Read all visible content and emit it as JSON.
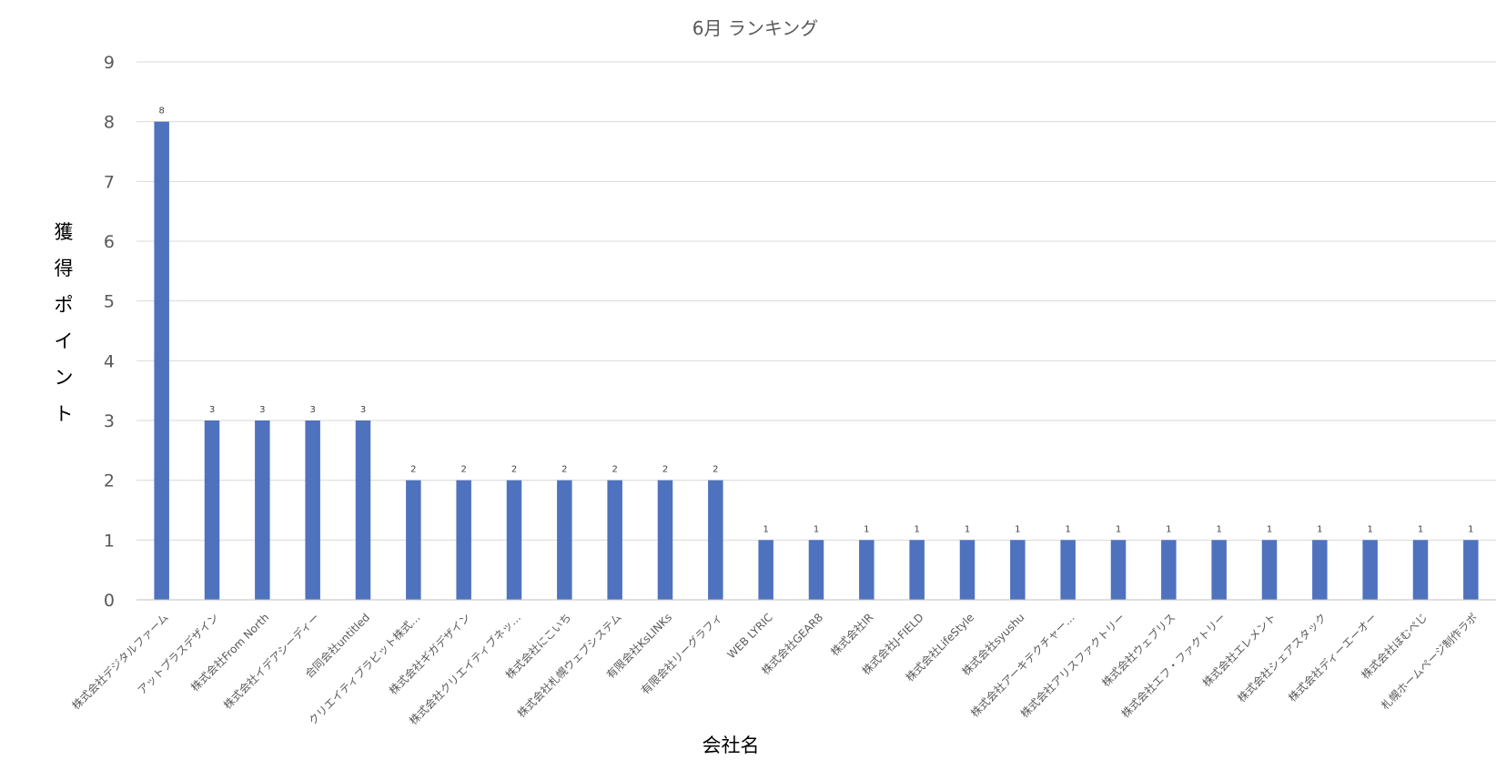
{
  "chart_data": {
    "type": "bar",
    "title": "6月 ランキング",
    "xlabel": "会社名",
    "ylabel": "獲得ポイント",
    "ylim": [
      0,
      9
    ],
    "yticks": [
      0,
      1,
      2,
      3,
      4,
      5,
      6,
      7,
      8,
      9
    ],
    "grid": true,
    "legend": "none",
    "colors": {
      "bar": "#4f72be",
      "grid": "#d9d9d9",
      "text": "#595959"
    },
    "categories": [
      "株式会社デジタルファーム",
      "アットプラスデザイン",
      "株式会社From North",
      "株式会社イデアシーディー",
      "合同会社untitled",
      "クリエイティブラビット株式…",
      "株式会社ギガデザイン",
      "株式会社クリエイティブネッ…",
      "株式会社にこいち",
      "株式会社札幌ウェブシステム",
      "有限会社KsLINKs",
      "有限会社リーグラフィ",
      "WEB LYRIC",
      "株式会社GEAR8",
      "株式会社IR",
      "株式会社J-FIELD",
      "株式会社LifeStyle",
      "株式会社syushu",
      "株式会社アーキテクチャー…",
      "株式会社アリスファクトリー",
      "株式会社ウェブリス",
      "株式会社エフ・ファクトリー",
      "株式会社エレメント",
      "株式会社シェアスタック",
      "株式会社ディーエーオー",
      "株式会社ほむぺじ",
      "札幌ホームページ制作ラボ"
    ],
    "values": [
      8,
      3,
      3,
      3,
      3,
      2,
      2,
      2,
      2,
      2,
      2,
      2,
      1,
      1,
      1,
      1,
      1,
      1,
      1,
      1,
      1,
      1,
      1,
      1,
      1,
      1,
      1
    ],
    "data_labels": [
      "8",
      "3",
      "3",
      "3",
      "3",
      "2",
      "2",
      "2",
      "2",
      "2",
      "2",
      "2",
      "1",
      "1",
      "1",
      "1",
      "1",
      "1",
      "1",
      "1",
      "1",
      "1",
      "1",
      "1",
      "1",
      "1",
      "1"
    ]
  }
}
